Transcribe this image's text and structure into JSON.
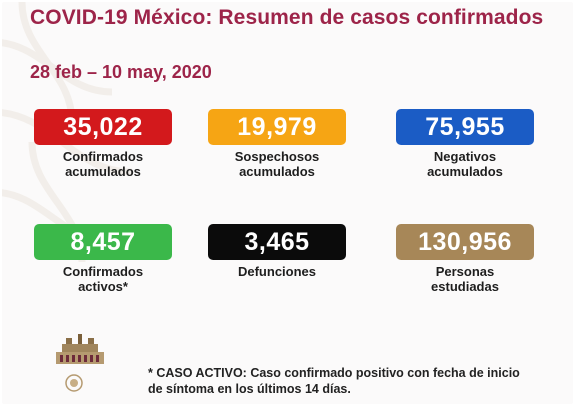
{
  "header": {
    "title": "COVID-19 México: Resumen de casos confirmados",
    "date_range": "28 feb – 10 may, 2020"
  },
  "stats": [
    {
      "value": "35,022",
      "label_line1": "Confirmados",
      "label_line2": "acumulados",
      "color": "#d3191c"
    },
    {
      "value": "19,979",
      "label_line1": "Sospechosos",
      "label_line2": "acumulados",
      "color": "#f6a514"
    },
    {
      "value": "75,955",
      "label_line1": "Negativos",
      "label_line2": "acumulados",
      "color": "#1b5cc5"
    },
    {
      "value": "8,457",
      "label_line1": "Confirmados",
      "label_line2": "activos*",
      "color": "#3bb84a"
    },
    {
      "value": "3,465",
      "label_line1": "Defunciones",
      "label_line2": "",
      "color": "#0b0b0b"
    },
    {
      "value": "130,956",
      "label_line1": "Personas",
      "label_line2": "estudiadas",
      "color": "#a78758"
    }
  ],
  "footnote": {
    "line1": "* CASO ACTIVO: Caso confirmado positivo con fecha de inicio",
    "line2": "de síntoma en los últimos 14 días."
  }
}
